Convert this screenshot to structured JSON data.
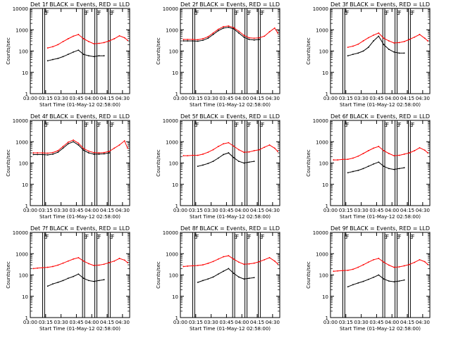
{
  "figure": {
    "xlabel": "Start Time (01-May-12 02:58:00)",
    "ylabel": "Counts/sec",
    "x_tick_labels": [
      "03:00",
      "03:15",
      "03:30",
      "03:45",
      "04:00",
      "04:15",
      "04:30"
    ],
    "x_ticks_min": [
      0,
      15,
      30,
      45,
      60,
      75,
      90
    ],
    "xlim_min": [
      0,
      97
    ],
    "y_tick_labels": [
      "1",
      "10",
      "100",
      "1000",
      "10000"
    ],
    "y_ticks": [
      1,
      10,
      100,
      1000,
      10000
    ],
    "ylim": [
      1,
      10000
    ],
    "ylog": true,
    "colors": {
      "events": "#000000",
      "lld": "#ff0000",
      "frame": "#000000"
    },
    "markers": [
      {
        "t": 12,
        "label": "E"
      },
      {
        "t": 14,
        "label": "F"
      },
      {
        "t": 51,
        "label": "E"
      },
      {
        "t": 53,
        "label": "F"
      },
      {
        "t": 63,
        "label": "E"
      },
      {
        "t": 65,
        "label": "F"
      },
      {
        "t": 76,
        "label": "E"
      },
      {
        "t": 78,
        "label": "F"
      }
    ]
  },
  "chart_data": [
    {
      "type": "line",
      "title": "Det 1f BLACK = Events, RED = LLD",
      "x_time": [
        "03:01",
        "03:05",
        "03:10",
        "03:15",
        "03:20",
        "03:25",
        "03:30",
        "03:35",
        "03:40",
        "03:45",
        "03:50",
        "03:55",
        "04:00",
        "04:05",
        "04:10",
        "04:15",
        "04:20",
        "04:25",
        "04:30",
        "04:33"
      ],
      "series": [
        {
          "name": "Events",
          "values": [
            null,
            null,
            null,
            35,
            40,
            45,
            55,
            70,
            90,
            110,
            70,
            60,
            55,
            60,
            60,
            null,
            null,
            null,
            null,
            null
          ]
        },
        {
          "name": "LLD",
          "values": [
            null,
            null,
            null,
            140,
            160,
            200,
            280,
            380,
            500,
            600,
            380,
            280,
            220,
            230,
            250,
            300,
            380,
            520,
            420,
            320
          ]
        }
      ]
    },
    {
      "type": "line",
      "title": "Det 2f BLACK = Events, RED = LLD",
      "x_time": [
        "03:01",
        "03:05",
        "03:10",
        "03:15",
        "03:20",
        "03:25",
        "03:30",
        "03:35",
        "03:40",
        "03:45",
        "03:50",
        "03:55",
        "04:00",
        "04:05",
        "04:10",
        "04:15",
        "04:20",
        "04:25",
        "04:30",
        "04:33"
      ],
      "series": [
        {
          "name": "Events",
          "values": [
            300,
            300,
            300,
            290,
            320,
            400,
            600,
            900,
            1200,
            1300,
            1100,
            700,
            450,
            350,
            330,
            350,
            null,
            null,
            null,
            null
          ]
        },
        {
          "name": "LLD",
          "values": [
            350,
            350,
            350,
            340,
            380,
            470,
            700,
            1050,
            1400,
            1500,
            1250,
            850,
            550,
            420,
            400,
            420,
            500,
            800,
            1200,
            700
          ]
        }
      ]
    },
    {
      "type": "line",
      "title": "Det 3f BLACK = Events, RED = LLD",
      "x_time": [
        "03:01",
        "03:05",
        "03:10",
        "03:15",
        "03:20",
        "03:25",
        "03:30",
        "03:35",
        "03:40",
        "03:45",
        "03:50",
        "03:55",
        "04:00",
        "04:05",
        "04:10",
        "04:15",
        "04:20",
        "04:25",
        "04:30",
        "04:33"
      ],
      "series": [
        {
          "name": "Events",
          "values": [
            null,
            null,
            null,
            60,
            70,
            80,
            100,
            150,
            300,
            500,
            200,
            120,
            90,
            80,
            80,
            null,
            null,
            null,
            null,
            null
          ]
        },
        {
          "name": "LLD",
          "values": [
            null,
            null,
            null,
            150,
            170,
            210,
            300,
            420,
            560,
            700,
            400,
            300,
            240,
            250,
            280,
            350,
            450,
            600,
            400,
            300
          ]
        }
      ]
    },
    {
      "type": "line",
      "title": "Det 4f BLACK = Events, RED = LLD",
      "x_time": [
        "03:01",
        "03:05",
        "03:10",
        "03:15",
        "03:20",
        "03:25",
        "03:30",
        "03:35",
        "03:40",
        "03:45",
        "03:50",
        "03:55",
        "04:00",
        "04:05",
        "04:10",
        "04:15",
        "04:20",
        "04:25",
        "04:30",
        "04:33"
      ],
      "series": [
        {
          "name": "Events",
          "values": [
            250,
            250,
            250,
            240,
            260,
            320,
            500,
            800,
            1000,
            700,
            400,
            300,
            260,
            260,
            270,
            300,
            null,
            null,
            null,
            null
          ]
        },
        {
          "name": "LLD",
          "values": [
            300,
            300,
            300,
            290,
            310,
            380,
            600,
            950,
            1200,
            850,
            480,
            360,
            310,
            300,
            310,
            350,
            500,
            700,
            1100,
            500
          ]
        }
      ]
    },
    {
      "type": "line",
      "title": "Det 5f BLACK = Events, RED = LLD",
      "x_time": [
        "03:01",
        "03:05",
        "03:10",
        "03:15",
        "03:20",
        "03:25",
        "03:30",
        "03:35",
        "03:40",
        "03:45",
        "03:50",
        "03:55",
        "04:00",
        "04:05",
        "04:10",
        "04:15",
        "04:20",
        "04:25",
        "04:30",
        "04:33"
      ],
      "series": [
        {
          "name": "Events",
          "values": [
            null,
            null,
            null,
            70,
            80,
            95,
            120,
            170,
            250,
            300,
            180,
            120,
            100,
            110,
            120,
            null,
            null,
            null,
            null,
            null
          ]
        },
        {
          "name": "LLD",
          "values": [
            220,
            220,
            230,
            230,
            260,
            320,
            420,
            600,
            800,
            900,
            620,
            420,
            320,
            330,
            380,
            420,
            550,
            700,
            500,
            350
          ]
        }
      ]
    },
    {
      "type": "line",
      "title": "Det 6f BLACK = Events, RED = LLD",
      "x_time": [
        "03:01",
        "03:05",
        "03:10",
        "03:15",
        "03:20",
        "03:25",
        "03:30",
        "03:35",
        "03:40",
        "03:45",
        "03:50",
        "03:55",
        "04:00",
        "04:05",
        "04:10",
        "04:15",
        "04:20",
        "04:25",
        "04:30",
        "04:33"
      ],
      "series": [
        {
          "name": "Events",
          "values": [
            null,
            null,
            null,
            35,
            40,
            45,
            55,
            70,
            90,
            110,
            70,
            55,
            50,
            55,
            60,
            null,
            null,
            null,
            null,
            null
          ]
        },
        {
          "name": "LLD",
          "values": [
            140,
            140,
            150,
            150,
            170,
            210,
            280,
            380,
            500,
            600,
            380,
            280,
            220,
            230,
            260,
            300,
            380,
            520,
            400,
            300
          ]
        }
      ]
    },
    {
      "type": "line",
      "title": "Det 7f BLACK = Events, RED = LLD",
      "x_time": [
        "03:01",
        "03:05",
        "03:10",
        "03:15",
        "03:20",
        "03:25",
        "03:30",
        "03:35",
        "03:40",
        "03:45",
        "03:50",
        "03:55",
        "04:00",
        "04:05",
        "04:10",
        "04:15",
        "04:20",
        "04:25",
        "04:30",
        "04:33"
      ],
      "series": [
        {
          "name": "Events",
          "values": [
            null,
            null,
            null,
            30,
            38,
            45,
            55,
            70,
            85,
            110,
            70,
            55,
            50,
            55,
            60,
            null,
            null,
            null,
            null,
            null
          ]
        },
        {
          "name": "LLD",
          "values": [
            200,
            210,
            220,
            230,
            250,
            290,
            360,
            450,
            560,
            650,
            450,
            340,
            280,
            290,
            320,
            380,
            450,
            600,
            500,
            380
          ]
        }
      ]
    },
    {
      "type": "line",
      "title": "Det 8f BLACK = Events, RED = LLD",
      "x_time": [
        "03:01",
        "03:05",
        "03:10",
        "03:15",
        "03:20",
        "03:25",
        "03:30",
        "03:35",
        "03:40",
        "03:45",
        "03:50",
        "03:55",
        "04:00",
        "04:05",
        "04:10",
        "04:15",
        "04:20",
        "04:25",
        "04:30",
        "04:33"
      ],
      "series": [
        {
          "name": "Events",
          "values": [
            null,
            null,
            null,
            45,
            55,
            65,
            80,
            110,
            150,
            200,
            120,
            80,
            65,
            70,
            75,
            null,
            null,
            null,
            null,
            null
          ]
        },
        {
          "name": "LLD",
          "values": [
            250,
            260,
            270,
            280,
            300,
            350,
            430,
            560,
            720,
            800,
            560,
            400,
            320,
            330,
            360,
            420,
            520,
            650,
            450,
            330
          ]
        }
      ]
    },
    {
      "type": "line",
      "title": "Det 9f BLACK = Events, RED = LLD",
      "x_time": [
        "03:01",
        "03:05",
        "03:10",
        "03:15",
        "03:20",
        "03:25",
        "03:30",
        "03:35",
        "03:40",
        "03:45",
        "03:50",
        "03:55",
        "04:00",
        "04:05",
        "04:10",
        "04:15",
        "04:20",
        "04:25",
        "04:30",
        "04:33"
      ],
      "series": [
        {
          "name": "Events",
          "values": [
            null,
            null,
            null,
            28,
            35,
            42,
            50,
            62,
            78,
            100,
            65,
            52,
            48,
            52,
            58,
            null,
            null,
            null,
            null,
            null
          ]
        },
        {
          "name": "LLD",
          "values": [
            150,
            155,
            160,
            165,
            185,
            230,
            300,
            400,
            520,
            600,
            400,
            290,
            230,
            240,
            270,
            310,
            390,
            520,
            420,
            310
          ]
        }
      ]
    }
  ]
}
